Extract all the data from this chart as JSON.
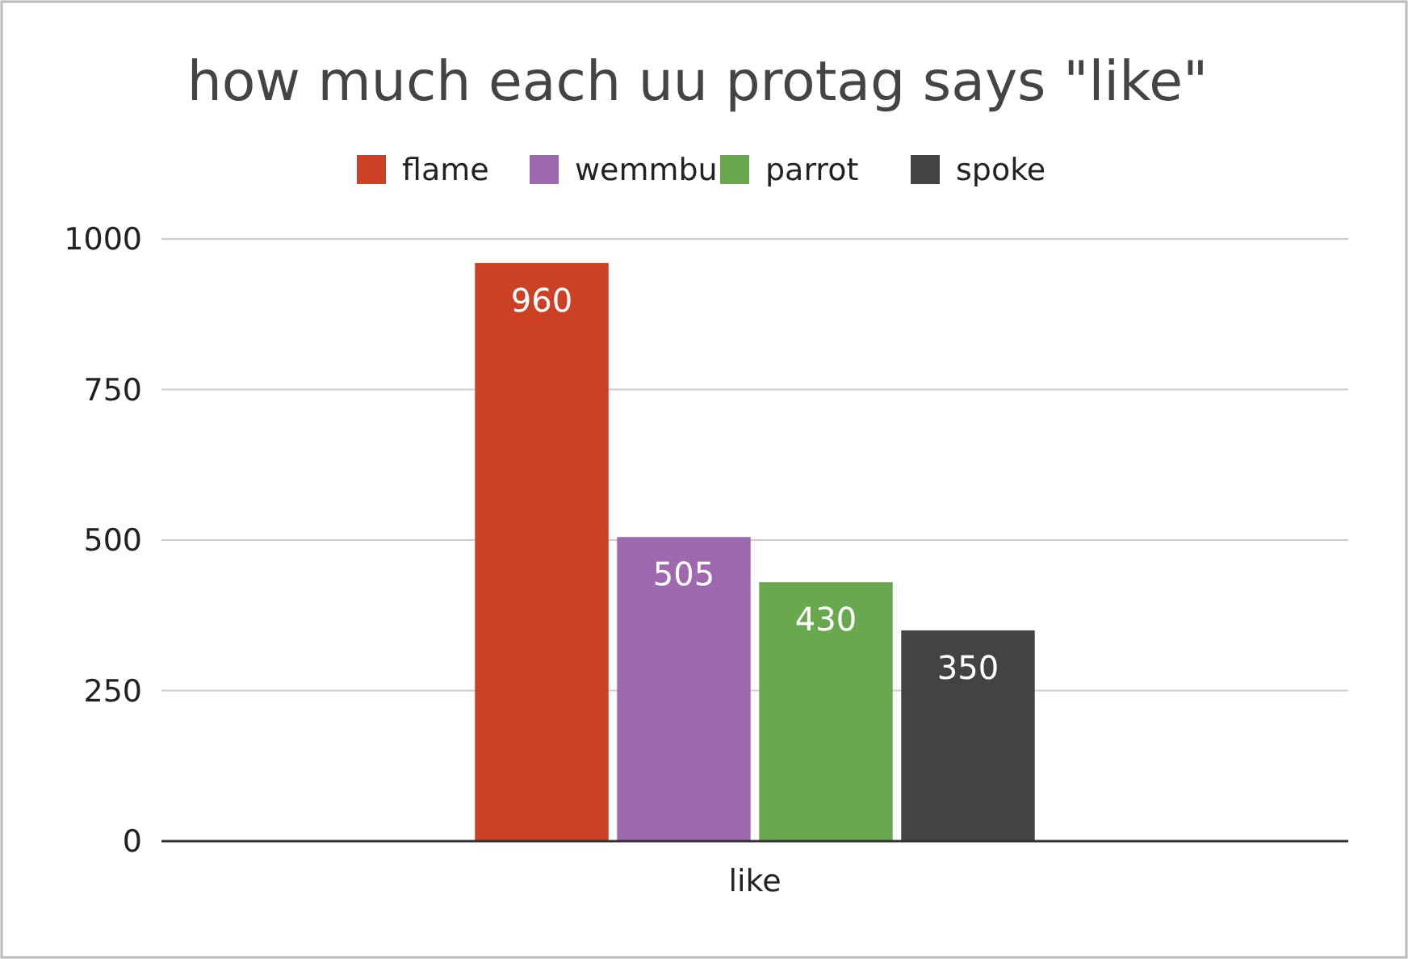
{
  "chart_data": {
    "type": "bar",
    "title": "how much each uu protag says \"like\"",
    "categories": [
      "like"
    ],
    "series": [
      {
        "name": "flame",
        "color": "#cc4125",
        "values": [
          960
        ]
      },
      {
        "name": "wemmbu",
        "color": "#9e69af",
        "values": [
          505
        ]
      },
      {
        "name": "parrot",
        "color": "#6aa84f",
        "values": [
          430
        ]
      },
      {
        "name": "spoke",
        "color": "#434343",
        "values": [
          350
        ]
      }
    ],
    "ylim": [
      0,
      1000
    ],
    "yticks": [
      0,
      250,
      500,
      750,
      1000
    ],
    "grid": "y",
    "legend": "top",
    "data_labels": true
  }
}
